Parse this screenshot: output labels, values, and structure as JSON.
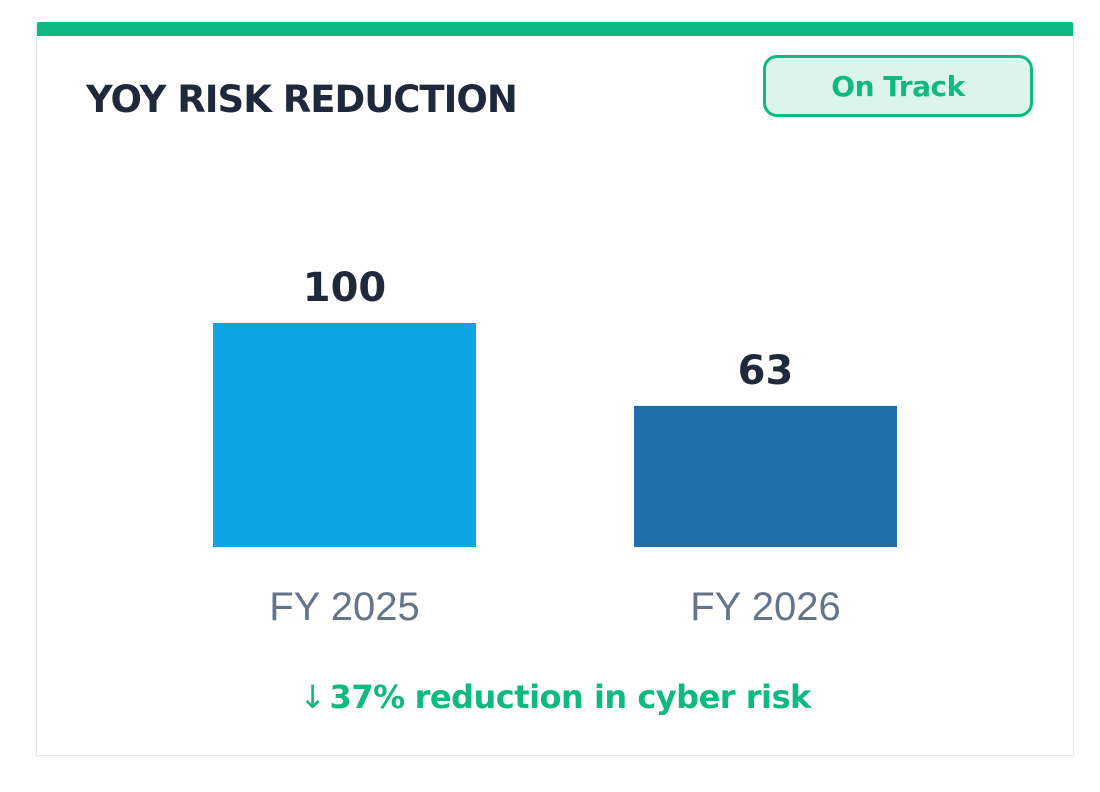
{
  "card": {
    "title": "YOY RISK REDUCTION",
    "status": "On Track",
    "accent_color": "#10b981"
  },
  "chart_data": {
    "type": "bar",
    "title": "YOY RISK REDUCTION",
    "categories": [
      "FY 2025",
      "FY 2026"
    ],
    "values": [
      100,
      63
    ],
    "colors": [
      "#0ea5e5",
      "#1e6fa8"
    ],
    "xlabel": "",
    "ylabel": "",
    "ylim": [
      0,
      100
    ],
    "grid": false,
    "data_labels": [
      "100",
      "63"
    ]
  },
  "summary": {
    "arrow_icon": "↓",
    "percent": "37%",
    "text": "reduction in cyber risk"
  }
}
